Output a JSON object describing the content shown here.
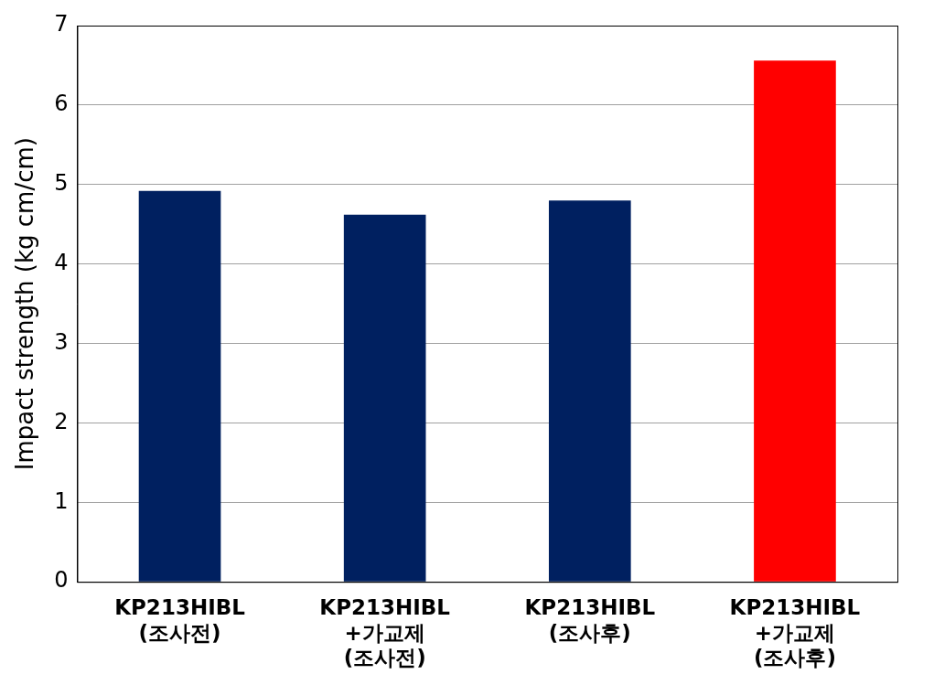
{
  "chart_data": {
    "type": "bar",
    "y_label": "Impact strength (kg cm/cm)",
    "categories": [
      "KP213HIBL\n(조사전)",
      "KP213HIBL\n+가교제\n(조사전)",
      "KP213HIBL\n(조사후)",
      "KP213HIBL\n+가교제\n(조사후)"
    ],
    "values": [
      4.92,
      4.62,
      4.8,
      6.56
    ],
    "colors": [
      "#002060",
      "#002060",
      "#002060",
      "#ff0000"
    ],
    "ylim": [
      0,
      7
    ],
    "yticks": [
      0,
      1,
      2,
      3,
      4,
      5,
      6,
      7
    ],
    "grid": true
  }
}
